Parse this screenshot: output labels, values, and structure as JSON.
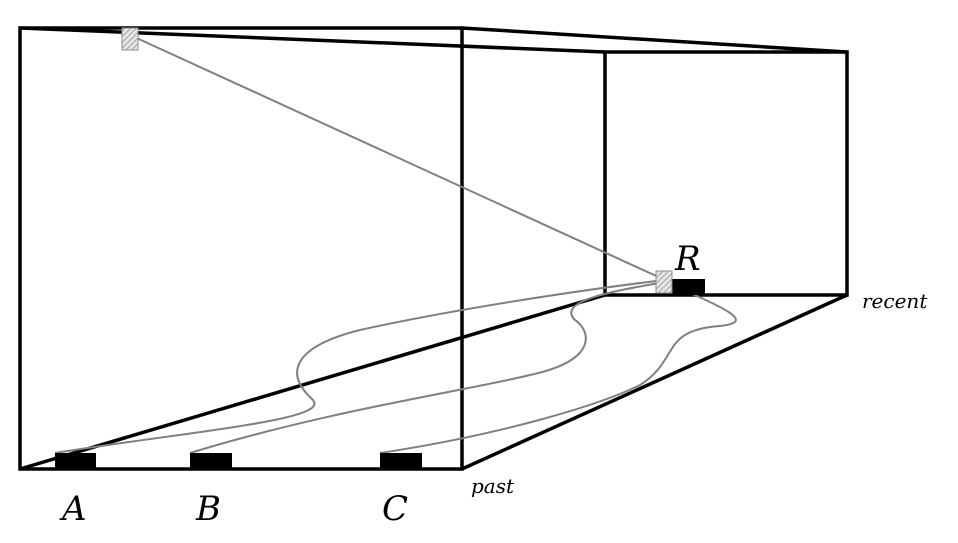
{
  "labels": {
    "a": "A",
    "b": "B",
    "c": "C",
    "r": "R",
    "past": "past",
    "recent": "recent"
  },
  "colors": {
    "edge": "#000000",
    "path": "#808080",
    "marker_fill": "#000000",
    "hatch_stroke": "#8c8c8c"
  }
}
